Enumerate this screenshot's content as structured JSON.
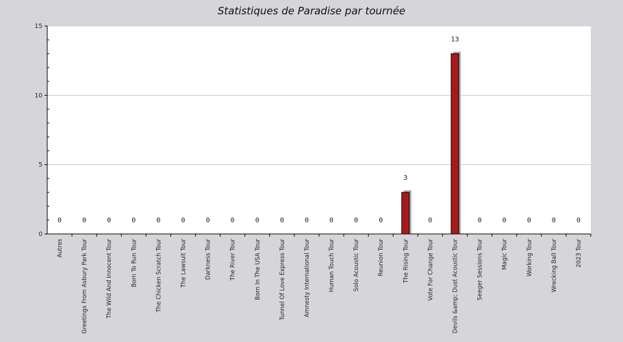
{
  "chart_data": {
    "type": "bar",
    "title": "Statistiques de Paradise par tournée",
    "xlabel": "",
    "ylabel": "",
    "ylim": [
      0,
      15
    ],
    "yticks": [
      0,
      5,
      10,
      15
    ],
    "grid": true,
    "categories": [
      "Autres",
      "Greetings From Asbury Park Tour",
      "The Wild And Innocent Tour",
      "Born To Run Tour",
      "The Chicken Scratch Tour",
      "The Lawsuit Tour",
      "Darkness Tour",
      "The River Tour",
      "Born In The USA Tour",
      "Tunnel Of Love Express Tour",
      "Amnesty International Tour",
      "Human Touch Tour",
      "Solo Acoustic Tour",
      "Reunion Tour",
      "The Rising Tour",
      "Vote For Change Tour",
      "Devils &amp; Dust Acoustic Tour",
      "Seeger Sessions Tour",
      "Magic Tour",
      "Working Tour",
      "Wrecking Ball Tour",
      "2023 Tour"
    ],
    "values": [
      0,
      0,
      0,
      0,
      0,
      0,
      0,
      0,
      0,
      0,
      0,
      0,
      0,
      0,
      3,
      0,
      13,
      0,
      0,
      0,
      0,
      0
    ],
    "bar_color": "#a81a1a",
    "shadow_color": "#aaaaaa"
  }
}
